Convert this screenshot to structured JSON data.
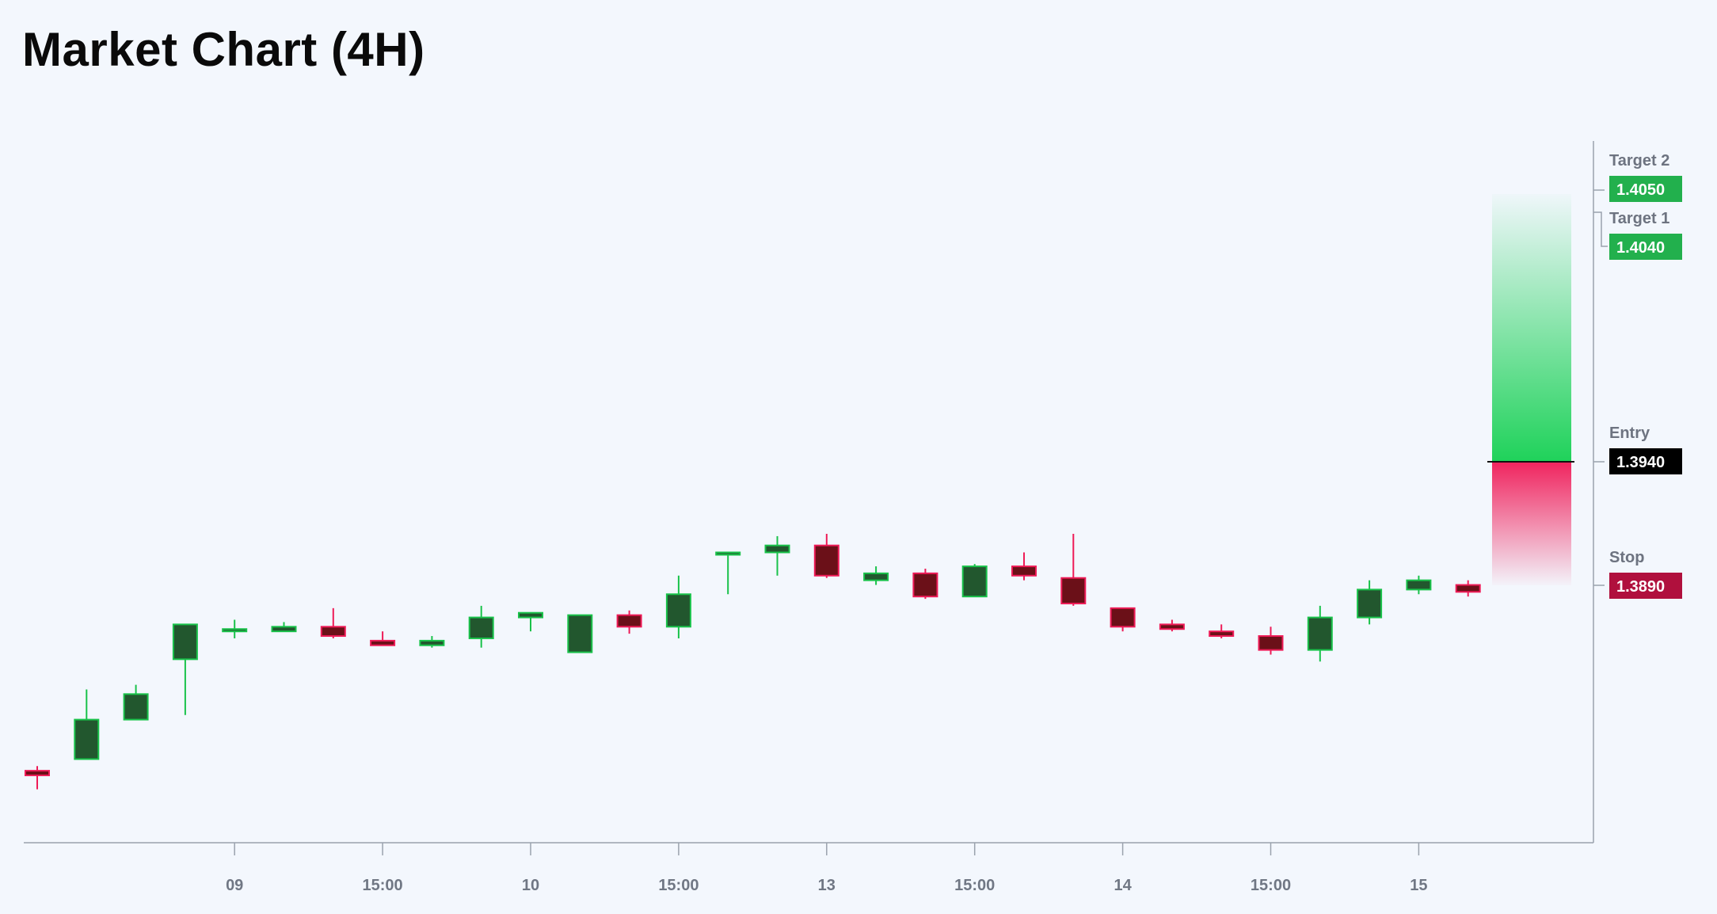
{
  "title": "Market Chart (4H)",
  "colors": {
    "background": "#f3f7fd",
    "bull_body": "#22572e",
    "bull_edge": "#19c24a",
    "bear_body": "#6b1018",
    "bear_edge": "#ee1b57",
    "axis": "#9aa2ad",
    "target_badge": "#22b04d",
    "entry_badge": "#000000",
    "stop_badge": "#b0103d",
    "profit_zone": "#1fd25a",
    "loss_zone": "#f0245e"
  },
  "chart_data": {
    "type": "candlestick",
    "title": "Market Chart (4H)",
    "timeframe": "4H",
    "x_tick_labels": [
      "09",
      "15:00",
      "10",
      "15:00",
      "13",
      "15:00",
      "14",
      "15:00",
      "15"
    ],
    "x_tick_candle_index": [
      4,
      7,
      10,
      13,
      16,
      19,
      22,
      25,
      28
    ],
    "ylim": [
      1.3775,
      1.4085
    ],
    "candles": [
      {
        "o": 1.3806,
        "h": 1.3808,
        "l": 1.3798,
        "c": 1.3804
      },
      {
        "o": 1.3811,
        "h": 1.3841,
        "l": 1.3811,
        "c": 1.3828
      },
      {
        "o": 1.3828,
        "h": 1.3843,
        "l": 1.3828,
        "c": 1.3839
      },
      {
        "o": 1.3854,
        "h": 1.3869,
        "l": 1.383,
        "c": 1.3869
      },
      {
        "o": 1.3866,
        "h": 1.3871,
        "l": 1.3863,
        "c": 1.3867
      },
      {
        "o": 1.3866,
        "h": 1.387,
        "l": 1.3866,
        "c": 1.3868
      },
      {
        "o": 1.3868,
        "h": 1.3876,
        "l": 1.3863,
        "c": 1.3864
      },
      {
        "o": 1.3862,
        "h": 1.3866,
        "l": 1.386,
        "c": 1.386
      },
      {
        "o": 1.386,
        "h": 1.3864,
        "l": 1.3859,
        "c": 1.3862
      },
      {
        "o": 1.3863,
        "h": 1.3877,
        "l": 1.3859,
        "c": 1.3872
      },
      {
        "o": 1.3872,
        "h": 1.3874,
        "l": 1.3866,
        "c": 1.3874
      },
      {
        "o": 1.3857,
        "h": 1.3873,
        "l": 1.3857,
        "c": 1.3873
      },
      {
        "o": 1.3873,
        "h": 1.3875,
        "l": 1.3865,
        "c": 1.3868
      },
      {
        "o": 1.3868,
        "h": 1.389,
        "l": 1.3863,
        "c": 1.3882
      },
      {
        "o": 1.39,
        "h": 1.39,
        "l": 1.3882,
        "c": 1.39
      },
      {
        "o": 1.39,
        "h": 1.3907,
        "l": 1.389,
        "c": 1.3903
      },
      {
        "o": 1.3903,
        "h": 1.3908,
        "l": 1.3889,
        "c": 1.389
      },
      {
        "o": 1.3888,
        "h": 1.3894,
        "l": 1.3886,
        "c": 1.3891
      },
      {
        "o": 1.3891,
        "h": 1.3893,
        "l": 1.388,
        "c": 1.3881
      },
      {
        "o": 1.3881,
        "h": 1.3895,
        "l": 1.3881,
        "c": 1.3894
      },
      {
        "o": 1.3894,
        "h": 1.39,
        "l": 1.3888,
        "c": 1.389
      },
      {
        "o": 1.3889,
        "h": 1.3908,
        "l": 1.3877,
        "c": 1.3878
      },
      {
        "o": 1.3876,
        "h": 1.3876,
        "l": 1.3866,
        "c": 1.3868
      },
      {
        "o": 1.3869,
        "h": 1.3871,
        "l": 1.3866,
        "c": 1.3867
      },
      {
        "o": 1.3866,
        "h": 1.3869,
        "l": 1.3863,
        "c": 1.3864
      },
      {
        "o": 1.3864,
        "h": 1.3868,
        "l": 1.3856,
        "c": 1.3858
      },
      {
        "o": 1.3858,
        "h": 1.3877,
        "l": 1.3853,
        "c": 1.3872
      },
      {
        "o": 1.3872,
        "h": 1.3888,
        "l": 1.3869,
        "c": 1.3884
      },
      {
        "o": 1.3884,
        "h": 1.389,
        "l": 1.3882,
        "c": 1.3888
      },
      {
        "o": 1.3886,
        "h": 1.3888,
        "l": 1.3881,
        "c": 1.3883
      }
    ],
    "trade_levels": [
      {
        "key": "target2",
        "name": "Target 2",
        "value": "1.4050"
      },
      {
        "key": "target1",
        "name": "Target 1",
        "value": "1.4040"
      },
      {
        "key": "entry",
        "name": "Entry",
        "value": "1.3940"
      },
      {
        "key": "stop",
        "name": "Stop",
        "value": "1.3890"
      }
    ]
  }
}
